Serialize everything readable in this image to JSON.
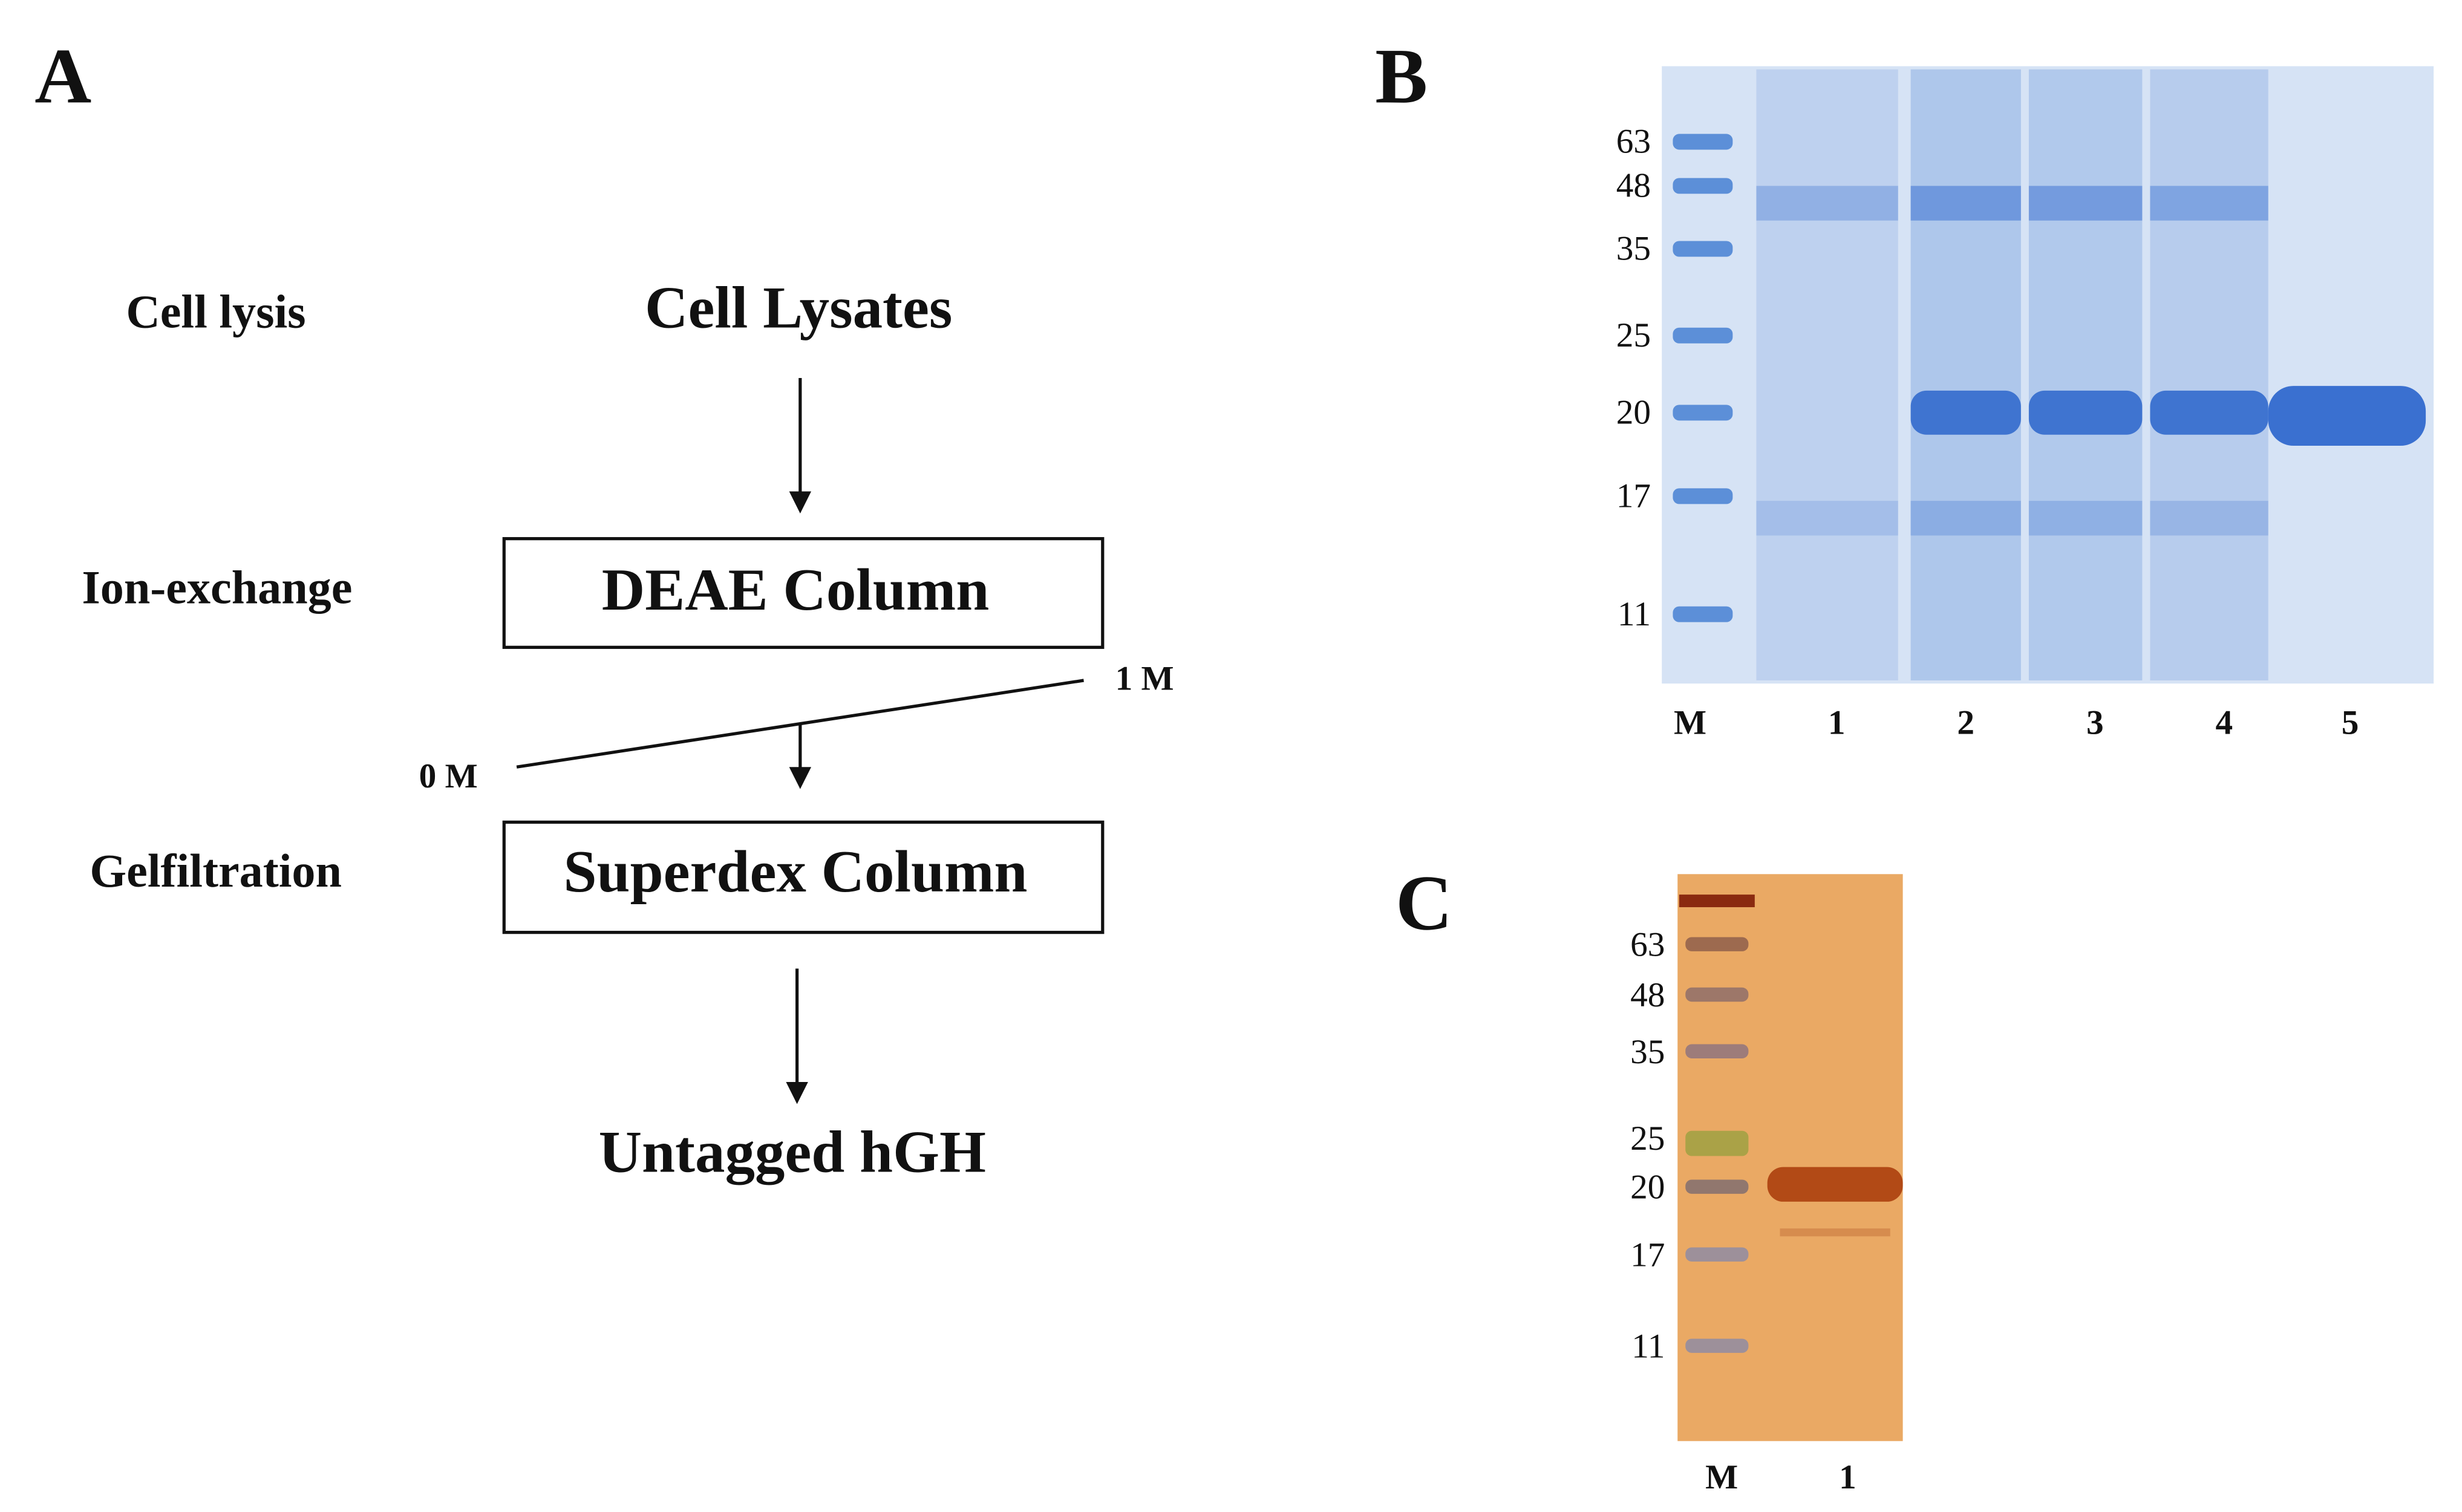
{
  "panel_a": {
    "label": "A",
    "cell_lysis": "Cell lysis",
    "cell_lysates": "Cell Lysates",
    "ion_exchange": "Ion-exchange",
    "deae": "DEAE Column",
    "gradient_start": "0 M",
    "gradient_end": "1 M",
    "gelfiltration": "Gelfiltration",
    "superdex": "Superdex Column",
    "product": "Untagged hGH"
  },
  "panel_b": {
    "label": "B",
    "markers": [
      "63",
      "48",
      "35",
      "25",
      "20",
      "17",
      "11"
    ],
    "lanes": [
      "M",
      "1",
      "2",
      "3",
      "4",
      "5"
    ]
  },
  "panel_c": {
    "label": "C",
    "markers": [
      "63",
      "48",
      "35",
      "25",
      "20",
      "17",
      "11"
    ],
    "lanes": [
      "M",
      "1"
    ]
  }
}
